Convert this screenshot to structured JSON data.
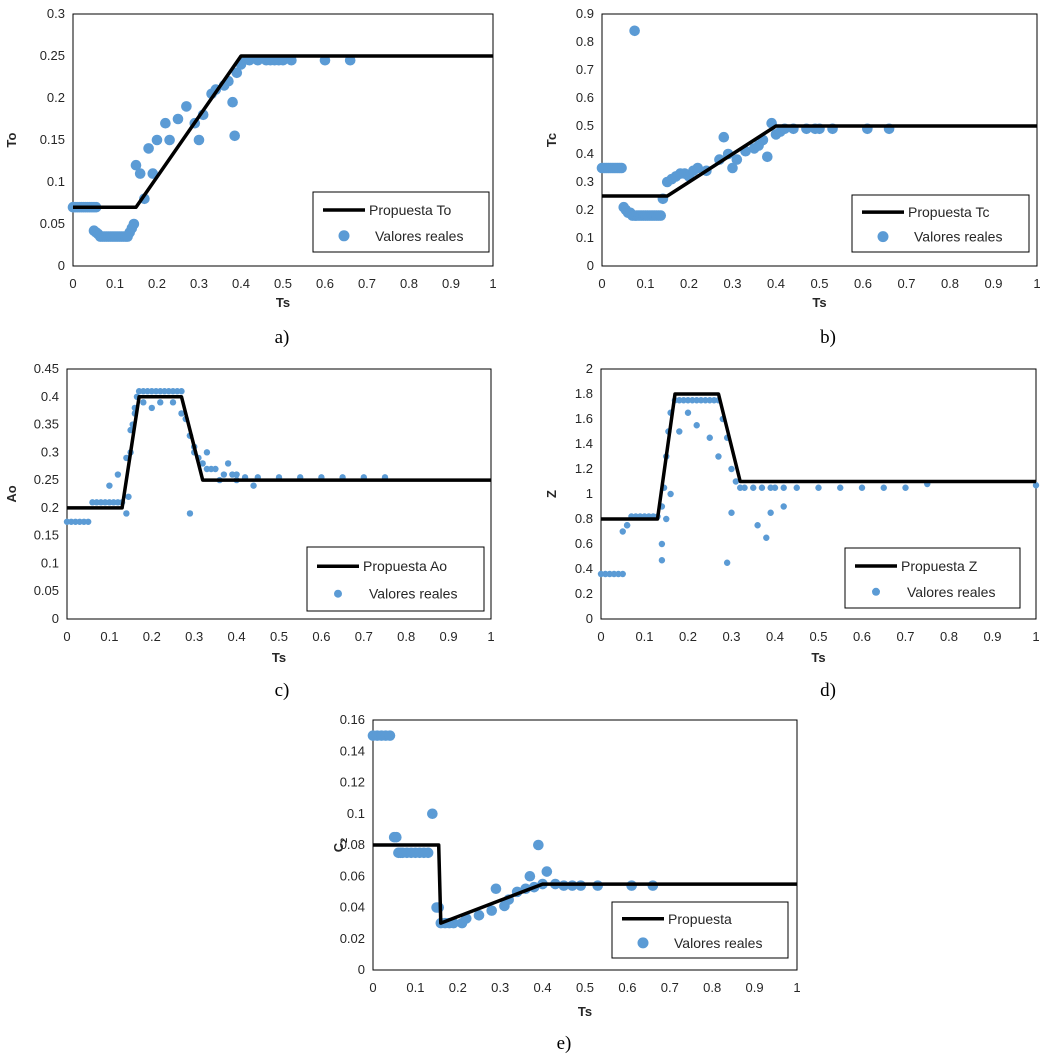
{
  "colors": {
    "line": "#000000",
    "points": "#5B9BD5",
    "frame": "#000000"
  },
  "chart_data": [
    {
      "id": "a",
      "type": "scatter",
      "panel_label": "a)",
      "xlabel": "Ts",
      "ylabel": "To",
      "xlim": [
        0,
        1
      ],
      "ylim": [
        0,
        0.3
      ],
      "xticks": [
        "0",
        "0.1",
        "0.2",
        "0.3",
        "0.4",
        "0.5",
        "0.6",
        "0.7",
        "0.8",
        "0.9",
        "1"
      ],
      "yticks": [
        "0",
        "0.05",
        "0.1",
        "0.15",
        "0.2",
        "0.25",
        "0.3"
      ],
      "series": [
        {
          "name": "Propuesta To",
          "kind": "line",
          "x": [
            0,
            0.15,
            0.4,
            1
          ],
          "y": [
            0.07,
            0.07,
            0.25,
            0.25
          ]
        },
        {
          "name": "Valores reales",
          "kind": "points",
          "x": [
            0,
            0.005,
            0.01,
            0.015,
            0.02,
            0.025,
            0.03,
            0.035,
            0.04,
            0.045,
            0.05,
            0.055,
            0.05,
            0.055,
            0.06,
            0.065,
            0.07,
            0.075,
            0.08,
            0.085,
            0.09,
            0.095,
            0.1,
            0.105,
            0.11,
            0.115,
            0.12,
            0.125,
            0.13,
            0.135,
            0.14,
            0.145,
            0.15,
            0.16,
            0.17,
            0.18,
            0.19,
            0.2,
            0.22,
            0.23,
            0.25,
            0.27,
            0.29,
            0.3,
            0.31,
            0.33,
            0.34,
            0.36,
            0.37,
            0.38,
            0.385,
            0.39,
            0.4,
            0.405,
            0.42,
            0.44,
            0.46,
            0.47,
            0.48,
            0.49,
            0.5,
            0.52,
            0.6,
            0.66
          ],
          "y": [
            0.07,
            0.07,
            0.07,
            0.07,
            0.07,
            0.07,
            0.07,
            0.07,
            0.07,
            0.07,
            0.07,
            0.07,
            0.042,
            0.04,
            0.038,
            0.035,
            0.035,
            0.035,
            0.035,
            0.035,
            0.035,
            0.035,
            0.035,
            0.035,
            0.035,
            0.035,
            0.035,
            0.035,
            0.035,
            0.04,
            0.045,
            0.05,
            0.12,
            0.11,
            0.08,
            0.14,
            0.11,
            0.15,
            0.17,
            0.15,
            0.175,
            0.19,
            0.17,
            0.15,
            0.18,
            0.205,
            0.21,
            0.215,
            0.22,
            0.195,
            0.155,
            0.23,
            0.24,
            0.245,
            0.245,
            0.245,
            0.245,
            0.245,
            0.245,
            0.245,
            0.245,
            0.245,
            0.245,
            0.245
          ]
        }
      ]
    },
    {
      "id": "b",
      "type": "scatter",
      "panel_label": "b)",
      "xlabel": "Ts",
      "ylabel": "Tc",
      "xlim": [
        0,
        1
      ],
      "ylim": [
        0,
        0.9
      ],
      "xticks": [
        "0",
        "0.1",
        "0.2",
        "0.3",
        "0.4",
        "0.5",
        "0.6",
        "0.7",
        "0.8",
        "0.9",
        "1"
      ],
      "yticks": [
        "0",
        "0.1",
        "0.2",
        "0.3",
        "0.4",
        "0.5",
        "0.6",
        "0.7",
        "0.8",
        "0.9"
      ],
      "series": [
        {
          "name": "Propuesta Tc",
          "kind": "line",
          "x": [
            0,
            0.15,
            0.4,
            1
          ],
          "y": [
            0.25,
            0.25,
            0.5,
            0.5
          ]
        },
        {
          "name": "Valores reales",
          "kind": "points",
          "x": [
            0,
            0.005,
            0.01,
            0.015,
            0.02,
            0.025,
            0.03,
            0.035,
            0.04,
            0.045,
            0.05,
            0.055,
            0.06,
            0.065,
            0.07,
            0.075,
            0.08,
            0.085,
            0.09,
            0.095,
            0.1,
            0.105,
            0.11,
            0.115,
            0.12,
            0.125,
            0.13,
            0.135,
            0.14,
            0.15,
            0.16,
            0.17,
            0.18,
            0.19,
            0.2,
            0.21,
            0.22,
            0.24,
            0.27,
            0.28,
            0.29,
            0.3,
            0.31,
            0.33,
            0.35,
            0.36,
            0.37,
            0.38,
            0.39,
            0.4,
            0.41,
            0.42,
            0.44,
            0.47,
            0.49,
            0.5,
            0.53,
            0.61,
            0.66,
            0.075
          ],
          "y": [
            0.35,
            0.35,
            0.35,
            0.35,
            0.35,
            0.35,
            0.35,
            0.35,
            0.35,
            0.35,
            0.21,
            0.2,
            0.19,
            0.19,
            0.18,
            0.18,
            0.18,
            0.18,
            0.18,
            0.18,
            0.18,
            0.18,
            0.18,
            0.18,
            0.18,
            0.18,
            0.18,
            0.18,
            0.24,
            0.3,
            0.31,
            0.32,
            0.33,
            0.33,
            0.32,
            0.34,
            0.35,
            0.34,
            0.38,
            0.46,
            0.4,
            0.35,
            0.38,
            0.41,
            0.42,
            0.43,
            0.45,
            0.39,
            0.51,
            0.47,
            0.48,
            0.49,
            0.49,
            0.49,
            0.49,
            0.49,
            0.49,
            0.49,
            0.49,
            0.84
          ]
        }
      ]
    },
    {
      "id": "c",
      "type": "scatter",
      "panel_label": "c)",
      "xlabel": "Ts",
      "ylabel": "Ao",
      "xlim": [
        0,
        1
      ],
      "ylim": [
        0,
        0.45
      ],
      "xticks": [
        "0",
        "0.1",
        "0.2",
        "0.3",
        "0.4",
        "0.5",
        "0.6",
        "0.7",
        "0.8",
        "0.9",
        "1"
      ],
      "yticks": [
        "0",
        "0.05",
        "0.1",
        "0.15",
        "0.2",
        "0.25",
        "0.3",
        "0.35",
        "0.4",
        "0.45"
      ],
      "series": [
        {
          "name": "Propuesta Ao",
          "kind": "line",
          "x": [
            0,
            0.13,
            0.17,
            0.27,
            0.32,
            1
          ],
          "y": [
            0.2,
            0.2,
            0.4,
            0.4,
            0.25,
            0.25
          ]
        },
        {
          "name": "Valores reales",
          "kind": "points",
          "x": [
            0,
            0.01,
            0.02,
            0.03,
            0.04,
            0.05,
            0.06,
            0.07,
            0.08,
            0.09,
            0.1,
            0.11,
            0.12,
            0.13,
            0.14,
            0.145,
            0.15,
            0.155,
            0.16,
            0.165,
            0.17,
            0.18,
            0.19,
            0.2,
            0.21,
            0.22,
            0.23,
            0.24,
            0.25,
            0.26,
            0.27,
            0.28,
            0.29,
            0.3,
            0.31,
            0.32,
            0.33,
            0.34,
            0.35,
            0.37,
            0.39,
            0.4,
            0.42,
            0.45,
            0.5,
            0.55,
            0.6,
            0.65,
            0.7,
            0.75,
            0.1,
            0.12,
            0.14,
            0.15,
            0.16,
            0.18,
            0.2,
            0.22,
            0.25,
            0.27,
            0.29,
            0.3,
            0.33,
            0.36,
            0.38,
            0.4,
            0.44,
            0.29
          ],
          "y": [
            0.175,
            0.175,
            0.175,
            0.175,
            0.175,
            0.175,
            0.21,
            0.21,
            0.21,
            0.21,
            0.21,
            0.21,
            0.21,
            0.21,
            0.19,
            0.22,
            0.3,
            0.35,
            0.38,
            0.4,
            0.41,
            0.41,
            0.41,
            0.41,
            0.41,
            0.41,
            0.41,
            0.41,
            0.41,
            0.41,
            0.41,
            0.36,
            0.33,
            0.3,
            0.29,
            0.28,
            0.27,
            0.27,
            0.27,
            0.26,
            0.26,
            0.26,
            0.255,
            0.255,
            0.255,
            0.255,
            0.255,
            0.255,
            0.255,
            0.255,
            0.24,
            0.26,
            0.29,
            0.34,
            0.37,
            0.39,
            0.38,
            0.39,
            0.39,
            0.37,
            0.33,
            0.31,
            0.3,
            0.25,
            0.28,
            0.25,
            0.24,
            0.19
          ]
        }
      ]
    },
    {
      "id": "d",
      "type": "scatter",
      "panel_label": "d)",
      "xlabel": "Ts",
      "ylabel": "Z",
      "xlim": [
        0,
        1
      ],
      "ylim": [
        0,
        2
      ],
      "xticks": [
        "0",
        "0.1",
        "0.2",
        "0.3",
        "0.4",
        "0.5",
        "0.6",
        "0.7",
        "0.8",
        "0.9",
        "1"
      ],
      "yticks": [
        "0",
        "0.2",
        "0.4",
        "0.6",
        "0.8",
        "1",
        "1.2",
        "1.4",
        "1.6",
        "1.8",
        "2"
      ],
      "series": [
        {
          "name": "Propuesta Z",
          "kind": "line",
          "x": [
            0,
            0.13,
            0.17,
            0.27,
            0.32,
            1
          ],
          "y": [
            0.8,
            0.8,
            1.8,
            1.8,
            1.1,
            1.1
          ]
        },
        {
          "name": "Valores reales",
          "kind": "points",
          "x": [
            0,
            0.01,
            0.02,
            0.03,
            0.04,
            0.05,
            0.06,
            0.07,
            0.08,
            0.09,
            0.1,
            0.11,
            0.12,
            0.13,
            0.14,
            0.145,
            0.15,
            0.155,
            0.16,
            0.17,
            0.18,
            0.19,
            0.2,
            0.21,
            0.22,
            0.23,
            0.24,
            0.25,
            0.26,
            0.27,
            0.28,
            0.29,
            0.3,
            0.31,
            0.32,
            0.33,
            0.35,
            0.37,
            0.39,
            0.4,
            0.42,
            0.45,
            0.5,
            0.55,
            0.6,
            0.65,
            0.7,
            0.75,
            1.0,
            0.14,
            0.14,
            0.15,
            0.16,
            0.18,
            0.2,
            0.22,
            0.25,
            0.27,
            0.29,
            0.3,
            0.36,
            0.38,
            0.39,
            0.42,
            0.05,
            0.06
          ],
          "y": [
            0.36,
            0.36,
            0.36,
            0.36,
            0.36,
            0.36,
            0.75,
            0.82,
            0.82,
            0.82,
            0.82,
            0.82,
            0.82,
            0.82,
            0.9,
            1.05,
            1.3,
            1.5,
            1.65,
            1.75,
            1.75,
            1.75,
            1.75,
            1.75,
            1.75,
            1.75,
            1.75,
            1.75,
            1.75,
            1.75,
            1.6,
            1.45,
            1.2,
            1.1,
            1.05,
            1.05,
            1.05,
            1.05,
            1.05,
            1.05,
            1.05,
            1.05,
            1.05,
            1.05,
            1.05,
            1.05,
            1.05,
            1.08,
            1.07,
            0.47,
            0.6,
            0.8,
            1.0,
            1.5,
            1.65,
            1.55,
            1.45,
            1.3,
            0.45,
            0.85,
            0.75,
            0.65,
            0.85,
            0.9,
            0.7,
            0.75
          ]
        }
      ]
    },
    {
      "id": "e",
      "type": "scatter",
      "panel_label": "e)",
      "xlabel": "Ts",
      "ylabel": "C",
      "ylabel_sub": "2",
      "xlim": [
        0,
        1
      ],
      "ylim": [
        0,
        0.16
      ],
      "xticks": [
        "0",
        "0.1",
        "0.2",
        "0.3",
        "0.4",
        "0.5",
        "0.6",
        "0.7",
        "0.8",
        "0.9",
        "1"
      ],
      "yticks": [
        "0",
        "0.02",
        "0.04",
        "0.06",
        "0.08",
        "0.1",
        "0.12",
        "0.14",
        "0.16"
      ],
      "series": [
        {
          "name": "Propuesta",
          "kind": "line",
          "x": [
            0,
            0.155,
            0.16,
            0.4,
            1
          ],
          "y": [
            0.08,
            0.08,
            0.03,
            0.055,
            0.055
          ]
        },
        {
          "name": "Valores reales",
          "kind": "points",
          "x": [
            0,
            0.01,
            0.02,
            0.03,
            0.04,
            0.05,
            0.055,
            0.06,
            0.065,
            0.07,
            0.08,
            0.09,
            0.1,
            0.11,
            0.12,
            0.13,
            0.14,
            0.15,
            0.155,
            0.16,
            0.17,
            0.18,
            0.19,
            0.21,
            0.22,
            0.25,
            0.28,
            0.29,
            0.31,
            0.32,
            0.34,
            0.36,
            0.37,
            0.38,
            0.39,
            0.4,
            0.41,
            0.43,
            0.45,
            0.47,
            0.49,
            0.53,
            0.61,
            0.66
          ],
          "y": [
            0.15,
            0.15,
            0.15,
            0.15,
            0.15,
            0.085,
            0.085,
            0.075,
            0.075,
            0.075,
            0.075,
            0.075,
            0.075,
            0.075,
            0.075,
            0.075,
            0.1,
            0.04,
            0.04,
            0.03,
            0.03,
            0.03,
            0.03,
            0.03,
            0.033,
            0.035,
            0.038,
            0.052,
            0.041,
            0.045,
            0.05,
            0.052,
            0.06,
            0.053,
            0.08,
            0.055,
            0.063,
            0.055,
            0.054,
            0.054,
            0.054,
            0.054,
            0.054,
            0.054
          ]
        }
      ]
    }
  ]
}
